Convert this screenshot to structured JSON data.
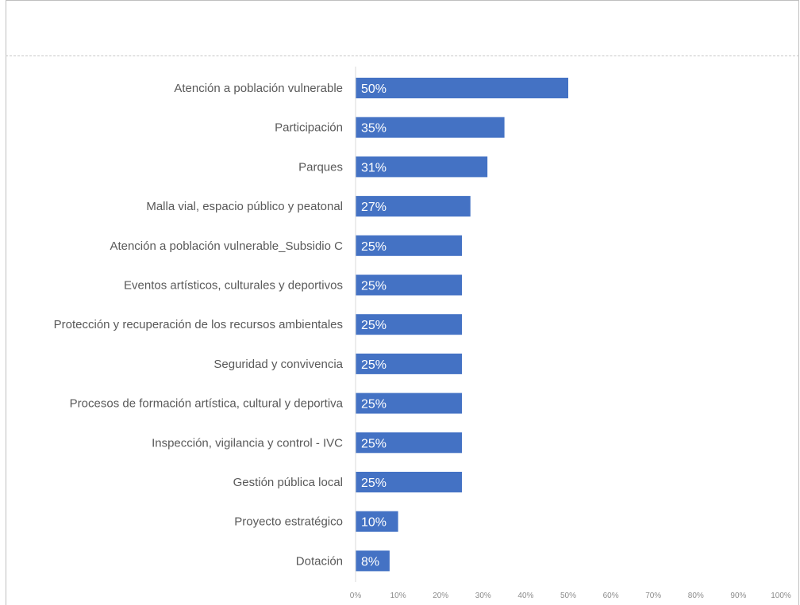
{
  "chart_data": {
    "type": "bar",
    "orientation": "horizontal",
    "categories": [
      "Atención a población vulnerable",
      "Participación",
      "Parques",
      "Malla vial, espacio público y peatonal",
      "Atención a población vulnerable_Subsidio C",
      "Eventos artísticos, culturales y deportivos",
      "Protección y recuperación de los recursos ambientales",
      "Seguridad y convivencia",
      "Procesos de formación artística, cultural y deportiva",
      "Inspección, vigilancia y control - IVC",
      "Gestión pública local",
      "Proyecto estratégico",
      "Dotación"
    ],
    "values": [
      50,
      35,
      31,
      27,
      25,
      25,
      25,
      25,
      25,
      25,
      25,
      10,
      8
    ],
    "value_labels": [
      "50%",
      "35%",
      "31%",
      "27%",
      "25%",
      "25%",
      "25%",
      "25%",
      "25%",
      "25%",
      "25%",
      "10%",
      "8%"
    ],
    "xlim": [
      0,
      100
    ],
    "x_ticks": [
      "0%",
      "10%",
      "20%",
      "30%",
      "40%",
      "50%",
      "60%",
      "70%",
      "80%",
      "90%",
      "100%"
    ],
    "bar_color": "#4472c4",
    "grid": false,
    "legend": "none"
  }
}
